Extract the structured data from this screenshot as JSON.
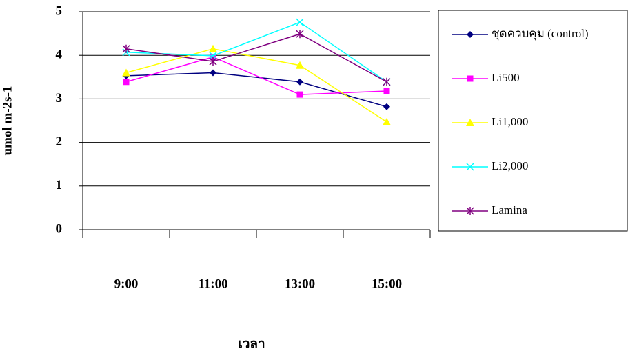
{
  "chart_data": {
    "type": "line",
    "x_label": "เวลา",
    "y_label": "umol m-2s-1",
    "categories": [
      "9:00",
      "11:00",
      "13:00",
      "15:00"
    ],
    "series": [
      {
        "name": "ชุดควบคุม (control)",
        "color": "#000080",
        "marker": "diamond",
        "values": [
          3.53,
          3.6,
          3.39,
          2.82
        ]
      },
      {
        "name": "Li500",
        "color": "#ff00ff",
        "marker": "square",
        "values": [
          3.39,
          3.96,
          3.1,
          3.18
        ]
      },
      {
        "name": "Li1,000",
        "color": "#ffff00",
        "marker": "triangle",
        "values": [
          3.6,
          4.15,
          3.77,
          2.47
        ]
      },
      {
        "name": "Li2,000",
        "color": "#00ffff",
        "marker": "x",
        "values": [
          4.07,
          3.99,
          4.76,
          3.39
        ]
      },
      {
        "name": "Lamina",
        "color": "#800080",
        "marker": "star",
        "values": [
          4.15,
          3.86,
          4.49,
          3.39
        ]
      }
    ],
    "ylim": [
      0,
      5
    ],
    "yticks": [
      0,
      1,
      2,
      3,
      4,
      5
    ],
    "grid": true,
    "legend": "right"
  }
}
